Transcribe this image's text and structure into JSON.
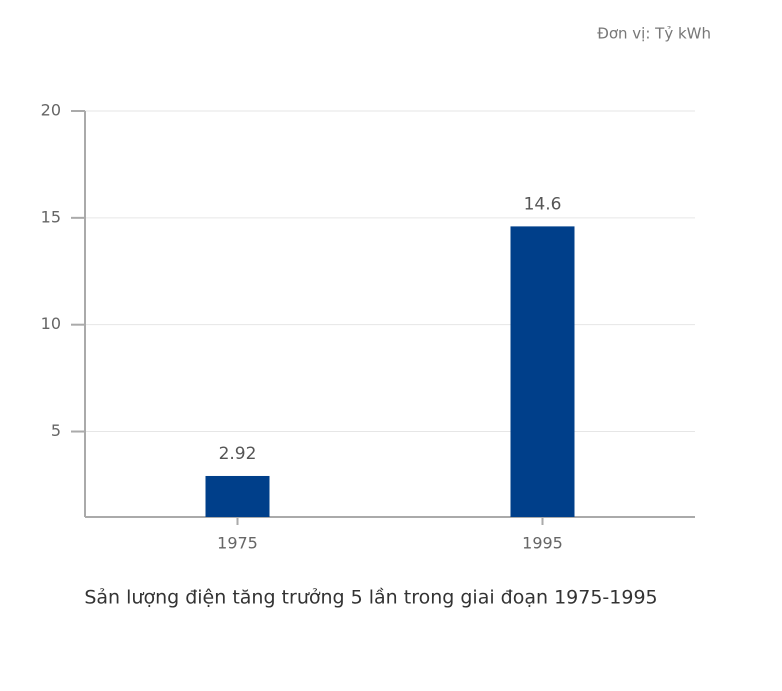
{
  "chart_data": {
    "type": "bar",
    "unit_label": "Đơn vị: Tỷ kWh",
    "caption": "Sản lượng điện tăng trưởng 5 lần trong giai đoạn 1975-1995",
    "categories": [
      "1975",
      "1995"
    ],
    "values": [
      2.92,
      14.6
    ],
    "color": "#003f8a",
    "ylim": [
      1,
      20
    ],
    "yticks": [
      5,
      10,
      15,
      20
    ],
    "grid": true
  }
}
